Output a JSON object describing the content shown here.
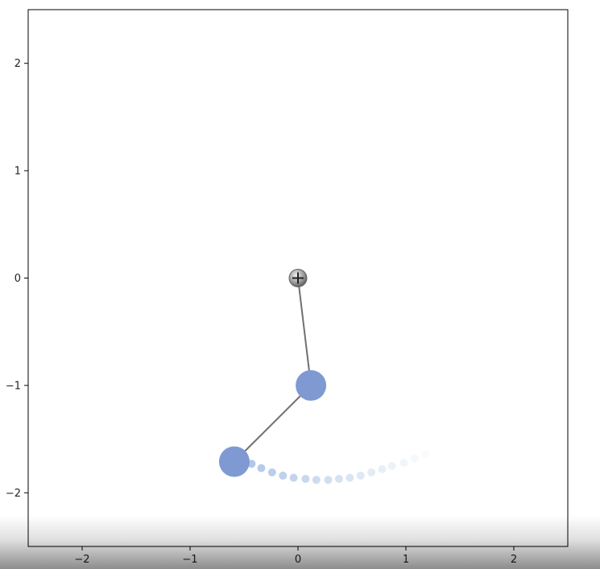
{
  "chart_data": {
    "type": "scatter",
    "title": "",
    "xlabel": "",
    "ylabel": "",
    "xlim": [
      -2.5,
      2.5
    ],
    "ylim": [
      -2.5,
      2.5
    ],
    "grid": false,
    "x_ticks": [
      -2,
      -1,
      0,
      1,
      2
    ],
    "y_ticks": [
      2,
      1,
      0,
      -1,
      -2
    ],
    "x_tick_labels": [
      "−2",
      "−1",
      "0",
      "1",
      "2"
    ],
    "y_tick_labels": [
      "2",
      "1",
      "0",
      "−1",
      "−2"
    ],
    "pivot": {
      "x": 0,
      "y": 0
    },
    "bob1": {
      "x": 0.12,
      "y": -1.0
    },
    "bob2": {
      "x": -0.59,
      "y": -1.71
    },
    "trail": [
      {
        "x": -0.43,
        "y": -1.73
      },
      {
        "x": -0.34,
        "y": -1.77
      },
      {
        "x": -0.24,
        "y": -1.81
      },
      {
        "x": -0.14,
        "y": -1.84
      },
      {
        "x": -0.04,
        "y": -1.86
      },
      {
        "x": 0.07,
        "y": -1.87
      },
      {
        "x": 0.17,
        "y": -1.88
      },
      {
        "x": 0.28,
        "y": -1.88
      },
      {
        "x": 0.38,
        "y": -1.87
      },
      {
        "x": 0.48,
        "y": -1.86
      },
      {
        "x": 0.58,
        "y": -1.84
      },
      {
        "x": 0.68,
        "y": -1.81
      },
      {
        "x": 0.78,
        "y": -1.78
      },
      {
        "x": 0.87,
        "y": -1.75
      },
      {
        "x": 0.98,
        "y": -1.72
      },
      {
        "x": 1.08,
        "y": -1.68
      },
      {
        "x": 1.18,
        "y": -1.64
      }
    ],
    "colors": {
      "bob": "#7f99d2",
      "rod": "#707070",
      "trail": "#9dbbe0",
      "pivot": "#9a9a9a"
    }
  }
}
